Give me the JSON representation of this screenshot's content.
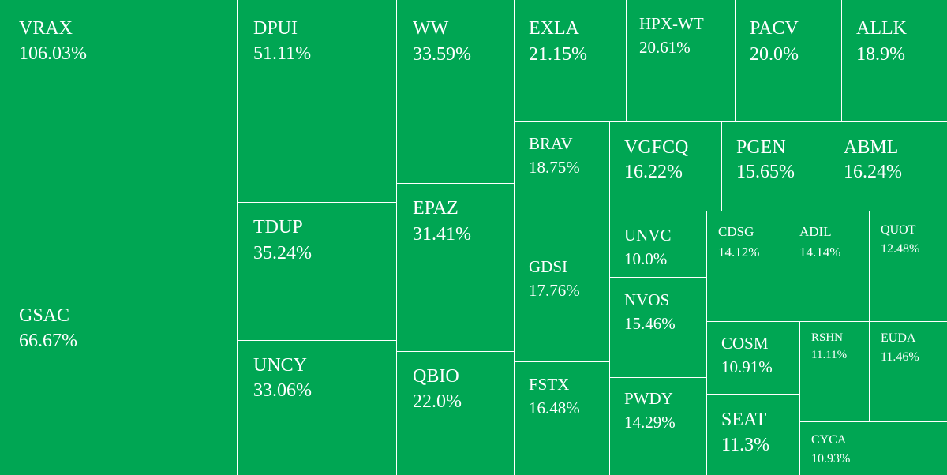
{
  "chart_data": {
    "type": "treemap",
    "color": "#00a653",
    "border_color": "#ffffff",
    "text_color": "#ffffff",
    "items": [
      {
        "label": "VRAX",
        "value": "106.03%"
      },
      {
        "label": "GSAC",
        "value": "66.67%"
      },
      {
        "label": "DPUI",
        "value": "51.11%"
      },
      {
        "label": "TDUP",
        "value": "35.24%"
      },
      {
        "label": "UNCY",
        "value": "33.06%"
      },
      {
        "label": "WW",
        "value": "33.59%"
      },
      {
        "label": "EPAZ",
        "value": "31.41%"
      },
      {
        "label": "QBIO",
        "value": "22.0%"
      },
      {
        "label": "EXLA",
        "value": "21.15%"
      },
      {
        "label": "HPX-WT",
        "value": "20.61%"
      },
      {
        "label": "PACV",
        "value": "20.0%"
      },
      {
        "label": "ALLK",
        "value": "18.9%"
      },
      {
        "label": "BRAV",
        "value": "18.75%"
      },
      {
        "label": "GDSI",
        "value": "17.76%"
      },
      {
        "label": "FSTX",
        "value": "16.48%"
      },
      {
        "label": "VGFCQ",
        "value": "16.22%"
      },
      {
        "label": "PGEN",
        "value": "15.65%"
      },
      {
        "label": "ABML",
        "value": "16.24%"
      },
      {
        "label": "UNVC",
        "value": "10.0%"
      },
      {
        "label": "NVOS",
        "value": "15.46%"
      },
      {
        "label": "PWDY",
        "value": "14.29%"
      },
      {
        "label": "CDSG",
        "value": "14.12%"
      },
      {
        "label": "ADIL",
        "value": "14.14%"
      },
      {
        "label": "QUOT",
        "value": "12.48%"
      },
      {
        "label": "COSM",
        "value": "10.91%"
      },
      {
        "label": "SEAT",
        "value": "11.3%"
      },
      {
        "label": "RSHN",
        "value": "11.11%"
      },
      {
        "label": "EUDA",
        "value": "11.46%"
      },
      {
        "label": "CYCA",
        "value": "10.93%"
      }
    ]
  }
}
